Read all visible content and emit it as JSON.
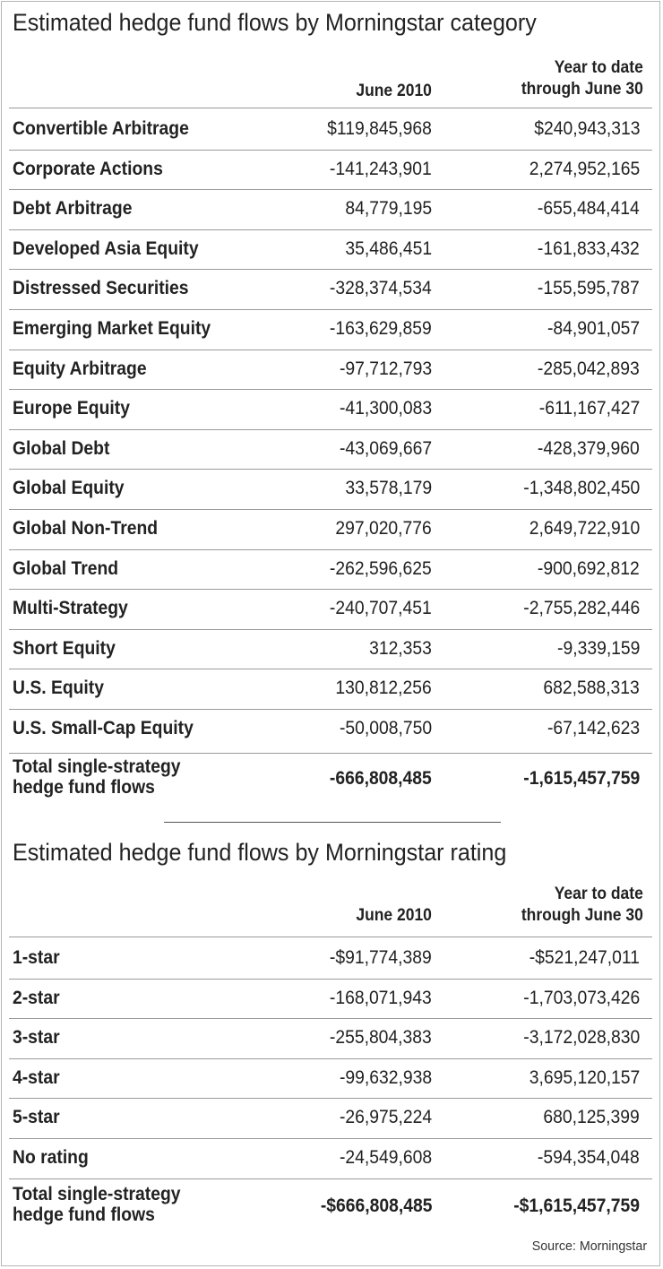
{
  "category_table": {
    "title": "Estimated hedge fund flows by Morningstar category",
    "col1_header": "June 2010",
    "col2_header_line1": "Year to date",
    "col2_header_line2": "through June 30",
    "rows": [
      {
        "label": "Convertible Arbitrage",
        "june": "$119,845,968",
        "ytd": "$240,943,313"
      },
      {
        "label": "Corporate Actions",
        "june": "-141,243,901",
        "ytd": "2,274,952,165"
      },
      {
        "label": "Debt Arbitrage",
        "june": "84,779,195",
        "ytd": "-655,484,414"
      },
      {
        "label": "Developed Asia Equity",
        "june": "35,486,451",
        "ytd": "-161,833,432"
      },
      {
        "label": "Distressed Securities",
        "june": "-328,374,534",
        "ytd": "-155,595,787"
      },
      {
        "label": "Emerging Market Equity",
        "june": "-163,629,859",
        "ytd": "-84,901,057"
      },
      {
        "label": "Equity Arbitrage",
        "june": "-97,712,793",
        "ytd": "-285,042,893"
      },
      {
        "label": "Europe Equity",
        "june": "-41,300,083",
        "ytd": "-611,167,427"
      },
      {
        "label": "Global Debt",
        "june": "-43,069,667",
        "ytd": "-428,379,960"
      },
      {
        "label": "Global Equity",
        "june": "33,578,179",
        "ytd": "-1,348,802,450"
      },
      {
        "label": "Global Non-Trend",
        "june": "297,020,776",
        "ytd": "2,649,722,910"
      },
      {
        "label": "Global Trend",
        "june": "-262,596,625",
        "ytd": "-900,692,812"
      },
      {
        "label": "Multi-Strategy",
        "june": "-240,707,451",
        "ytd": "-2,755,282,446"
      },
      {
        "label": "Short Equity",
        "june": "312,353",
        "ytd": "-9,339,159"
      },
      {
        "label": "U.S. Equity",
        "june": "130,812,256",
        "ytd": "682,588,313"
      },
      {
        "label": "U.S. Small-Cap Equity",
        "june": "-50,008,750",
        "ytd": "-67,142,623"
      }
    ],
    "total": {
      "label_line1": "Total single-strategy",
      "label_line2": "hedge fund flows",
      "june": "-666,808,485",
      "ytd": "-1,615,457,759"
    }
  },
  "rating_table": {
    "title": "Estimated hedge fund flows by Morningstar rating",
    "col1_header": "June 2010",
    "col2_header_line1": "Year to date",
    "col2_header_line2": "through June 30",
    "rows": [
      {
        "label": "1-star",
        "june": "-$91,774,389",
        "ytd": "-$521,247,011"
      },
      {
        "label": "2-star",
        "june": "-168,071,943",
        "ytd": "-1,703,073,426"
      },
      {
        "label": "3-star",
        "june": "-255,804,383",
        "ytd": "-3,172,028,830"
      },
      {
        "label": "4-star",
        "june": "-99,632,938",
        "ytd": "3,695,120,157"
      },
      {
        "label": "5-star",
        "june": "-26,975,224",
        "ytd": "680,125,399"
      },
      {
        "label": "No rating",
        "june": "-24,549,608",
        "ytd": "-594,354,048"
      }
    ],
    "total": {
      "label_line1": "Total single-strategy",
      "label_line2": "hedge fund flows",
      "june": "-$666,808,485",
      "ytd": "-$1,615,457,759"
    }
  },
  "source": "Source: Morningstar"
}
